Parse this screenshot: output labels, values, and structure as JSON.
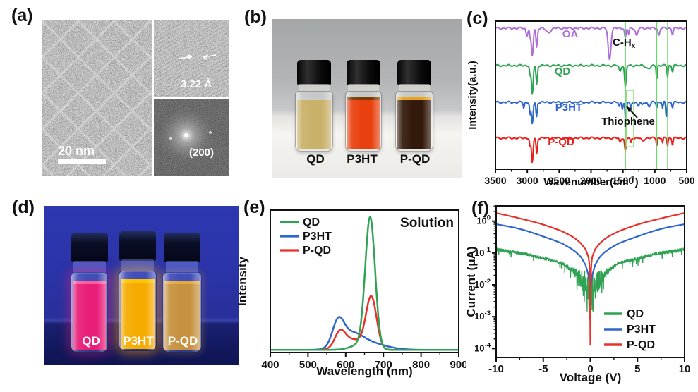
{
  "figure": {
    "panel_labels": {
      "a": "(a)",
      "b": "(b)",
      "c": "(c)",
      "d": "(d)",
      "e": "(e)",
      "f": "(f)"
    },
    "panel_a": {
      "scale_bar": "20 nm",
      "lattice_spacing": "3.22 Å",
      "fft_plane": "(200)"
    },
    "panel_b": {
      "labels": [
        "QD",
        "P3HT",
        "P-QD"
      ],
      "liquid_colors": [
        "#c9b169",
        "#e8410f",
        "#33190a"
      ]
    },
    "panel_d": {
      "labels": [
        "QD",
        "P3HT",
        "P-QD"
      ],
      "liquid_colors": [
        "#e81e79",
        "#f6ab00",
        "#c6923f"
      ]
    }
  },
  "chart_data": [
    {
      "panel": "c",
      "type": "line",
      "kind": "ftir",
      "xlabel_pre": "Wavenumber(cm",
      "xlabel_sup": "-1",
      "xlabel_post": ")",
      "ylabel": "Intensity(a.u.)",
      "xlim": [
        3500,
        500
      ],
      "x_ticks": [
        3500,
        3000,
        2500,
        2000,
        1500,
        1000,
        500
      ],
      "marker_line_color": "#5ad45a",
      "marker_lines_wn": [
        1460,
        970,
        800
      ],
      "box_wn": [
        1445,
        1332
      ],
      "box_yfrac": [
        0.467,
        0.848
      ],
      "annotations": {
        "chx": {
          "text": "C-H",
          "sub": "x",
          "wn": 1662,
          "yfrac": 0.167
        },
        "thiophene": {
          "text": "Thiophene",
          "wn": 1419,
          "yfrac": 0.7,
          "arrow": [
            0.742,
            0.652,
            0.686,
            0.576
          ]
        }
      },
      "series": [
        {
          "name": "OA",
          "color": "#ae70d8",
          "offset": 0.048,
          "label_wn": 2327,
          "label_yfrac": 0.086,
          "dips": [
            [
              3006,
              20,
              0.05
            ],
            [
              2954,
              14,
              0.06
            ],
            [
              2922,
              20,
              0.19
            ],
            [
              2853,
              16,
              0.13
            ],
            [
              2670,
              50,
              0.03
            ],
            [
              1710,
              30,
              0.21
            ],
            [
              1462,
              16,
              0.07
            ],
            [
              1412,
              14,
              0.04
            ],
            [
              1285,
              24,
              0.05
            ],
            [
              937,
              18,
              0.05
            ],
            [
              722,
              16,
              0.04
            ]
          ]
        },
        {
          "name": "QD",
          "color": "#2fa253",
          "offset": 0.3,
          "label_wn": 2448,
          "label_yfrac": 0.338,
          "dips": [
            [
              2955,
              13,
              0.07
            ],
            [
              2922,
              18,
              0.2
            ],
            [
              2852,
              15,
              0.13
            ],
            [
              1546,
              20,
              0.04
            ],
            [
              1462,
              17,
              0.15
            ],
            [
              1100,
              50,
              0.02
            ],
            [
              970,
              11,
              0.09
            ],
            [
              800,
              11,
              0.08
            ],
            [
              722,
              13,
              0.04
            ]
          ]
        },
        {
          "name": "P3HT",
          "color": "#2f66cc",
          "offset": 0.548,
          "label_wn": 2349,
          "label_yfrac": 0.581,
          "dips": [
            [
              3055,
              12,
              0.04
            ],
            [
              2955,
              13,
              0.09
            ],
            [
              2922,
              17,
              0.15
            ],
            [
              2855,
              14,
              0.1
            ],
            [
              1560,
              14,
              0.03
            ],
            [
              1508,
              13,
              0.04
            ],
            [
              1456,
              15,
              0.13
            ],
            [
              1377,
              13,
              0.05
            ],
            [
              1260,
              20,
              0.025
            ],
            [
              1200,
              18,
              0.02
            ],
            [
              1090,
              25,
              0.03
            ],
            [
              970,
              10,
              0.035
            ],
            [
              877,
              10,
              0.045
            ],
            [
              820,
              12,
              0.1
            ],
            [
              722,
              12,
              0.035
            ]
          ]
        },
        {
          "name": "P-QD",
          "color": "#e8211d",
          "offset": 0.79,
          "label_wn": 2470,
          "label_yfrac": 0.814,
          "dips": [
            [
              2955,
              13,
              0.06
            ],
            [
              2922,
              17,
              0.17
            ],
            [
              2852,
              14,
              0.11
            ],
            [
              1546,
              16,
              0.03
            ],
            [
              1462,
              16,
              0.09
            ],
            [
              1377,
              12,
              0.035
            ],
            [
              1190,
              30,
              0.02
            ],
            [
              970,
              10,
              0.05
            ],
            [
              877,
              10,
              0.035
            ],
            [
              800,
              11,
              0.05
            ],
            [
              722,
              12,
              0.045
            ]
          ]
        }
      ]
    },
    {
      "panel": "e",
      "type": "line",
      "kind": "pl",
      "annotation": "Solution",
      "xlabel": "Wavelength (nm)",
      "ylabel": "Intensity",
      "xlim": [
        400,
        900
      ],
      "x_ticks": [
        400,
        500,
        600,
        700,
        800,
        900
      ],
      "legend": [
        {
          "name": "QD",
          "color": "#2fa253"
        },
        {
          "name": "P3HT",
          "color": "#2f66cc"
        },
        {
          "name": "P-QD",
          "color": "#e8312b"
        }
      ],
      "series": [
        {
          "name": "P3HT",
          "color": "#2f66cc",
          "baseline": 0.02,
          "peaks": [
            [
              580,
              15,
              0.175
            ],
            [
              612,
              30,
              0.1
            ],
            [
              660,
              45,
              0.05
            ]
          ]
        },
        {
          "name": "P-QD",
          "color": "#e8312b",
          "baseline": 0.02,
          "peaks": [
            [
              585,
              14,
              0.115
            ],
            [
              620,
              28,
              0.075
            ],
            [
              668,
              14,
              0.385
            ]
          ]
        },
        {
          "name": "QD",
          "color": "#2fa253",
          "baseline": 0.02,
          "peaks": [
            [
              665,
              13,
              0.97
            ],
            [
              640,
              25,
              0.04
            ]
          ]
        }
      ]
    },
    {
      "panel": "f",
      "type": "line",
      "kind": "iv",
      "xlabel": "Voltage (V)",
      "ylabel": "Current (μA)",
      "xlim": [
        -10,
        10
      ],
      "x_ticks": [
        -10,
        -5,
        0,
        5,
        10
      ],
      "x_minor_step": 2.5,
      "ylog_exponents": [
        0,
        -1,
        -2,
        -3,
        -4
      ],
      "ylim_log": [
        -4.28,
        0.48
      ],
      "legend": [
        {
          "name": "QD",
          "color": "#2fa253"
        },
        {
          "name": "P3HT",
          "color": "#2f66cc"
        },
        {
          "name": "P-QD",
          "color": "#e8312b"
        }
      ],
      "series": [
        {
          "name": "QD",
          "color": "#2fa253",
          "noisy": true,
          "points": [
            [
              0,
              0.006
            ],
            [
              0.2,
              0.008
            ],
            [
              0.5,
              0.01
            ],
            [
              1,
              0.016
            ],
            [
              1.5,
              0.022
            ],
            [
              2,
              0.03
            ],
            [
              3,
              0.048
            ],
            [
              4,
              0.058
            ],
            [
              5,
              0.068
            ],
            [
              6,
              0.08
            ],
            [
              7,
              0.095
            ],
            [
              8,
              0.105
            ],
            [
              9,
              0.118
            ],
            [
              10,
              0.13
            ]
          ]
        },
        {
          "name": "P3HT",
          "color": "#2f66cc",
          "points": [
            [
              0,
              0.006
            ],
            [
              0.05,
              0.009
            ],
            [
              0.1,
              0.013
            ],
            [
              0.2,
              0.02
            ],
            [
              0.5,
              0.042
            ],
            [
              1,
              0.075
            ],
            [
              1.5,
              0.105
            ],
            [
              2,
              0.135
            ],
            [
              3,
              0.2
            ],
            [
              4,
              0.26
            ],
            [
              5,
              0.33
            ],
            [
              6,
              0.42
            ],
            [
              7,
              0.52
            ],
            [
              8,
              0.62
            ],
            [
              9,
              0.71
            ],
            [
              10,
              0.8
            ]
          ]
        },
        {
          "name": "P-QD",
          "color": "#e8312b",
          "points": [
            [
              0,
              0.00013
            ],
            [
              0.02,
              0.002
            ],
            [
              0.05,
              0.02
            ],
            [
              0.1,
              0.045
            ],
            [
              0.2,
              0.075
            ],
            [
              0.5,
              0.13
            ],
            [
              1,
              0.2
            ],
            [
              1.5,
              0.27
            ],
            [
              2,
              0.34
            ],
            [
              3,
              0.48
            ],
            [
              4,
              0.62
            ],
            [
              5,
              0.78
            ],
            [
              6,
              0.95
            ],
            [
              7,
              1.12
            ],
            [
              8,
              1.33
            ],
            [
              9,
              1.55
            ],
            [
              10,
              1.8
            ]
          ]
        }
      ]
    }
  ]
}
